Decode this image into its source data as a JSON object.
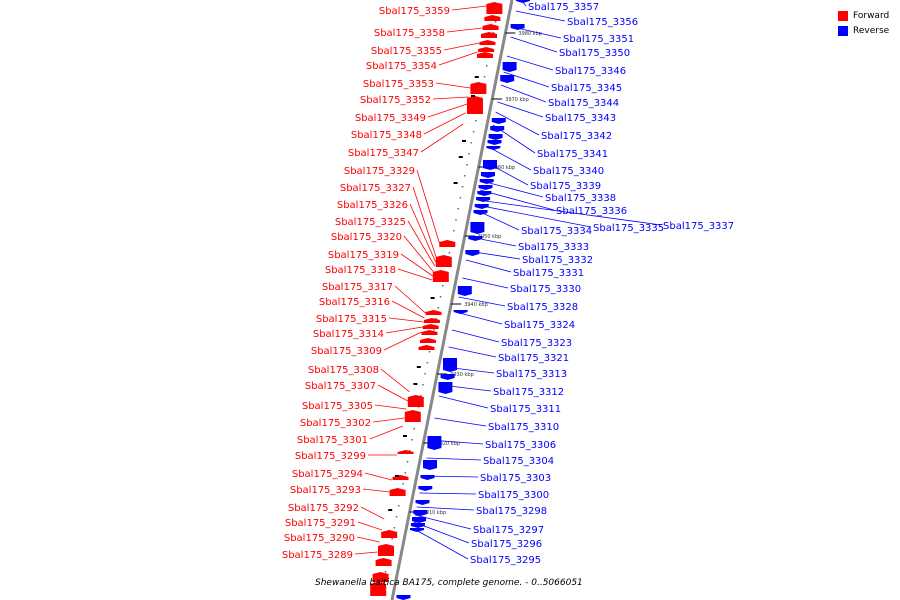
{
  "legend": {
    "forward_label": "Forward",
    "reverse_label": "Reverse",
    "forward_color": "#ff0000",
    "reverse_color": "#0000ff"
  },
  "caption": "Shewanella baltica BA175, complete genome. - 0..5066051",
  "axis_ticks": [
    "3980 kbp",
    "3970 kbp",
    "3960 kbp",
    "3950 kbp",
    "3940 kbp",
    "3930 kbp",
    "3920 kbp",
    "3910 kbp"
  ],
  "forward_labels": [
    "Sbal175_3359",
    "Sbal175_3358",
    "Sbal175_3355",
    "Sbal175_3354",
    "Sbal175_3353",
    "Sbal175_3352",
    "Sbal175_3349",
    "Sbal175_3348",
    "Sbal175_3347",
    "Sbal175_3329",
    "Sbal175_3327",
    "Sbal175_3326",
    "Sbal175_3325",
    "Sbal175_3320",
    "Sbal175_3319",
    "Sbal175_3318",
    "Sbal175_3317",
    "Sbal175_3316",
    "Sbal175_3315",
    "Sbal175_3314",
    "Sbal175_3309",
    "Sbal175_3308",
    "Sbal175_3307",
    "Sbal175_3305",
    "Sbal175_3302",
    "Sbal175_3301",
    "Sbal175_3299",
    "Sbal175_3294",
    "Sbal175_3293",
    "Sbal175_3292",
    "Sbal175_3291",
    "Sbal175_3290",
    "Sbal175_3289"
  ],
  "reverse_labels": [
    "Sbal175_3357",
    "Sbal175_3356",
    "Sbal175_3351",
    "Sbal175_3350",
    "Sbal175_3346",
    "Sbal175_3345",
    "Sbal175_3344",
    "Sbal175_3343",
    "Sbal175_3342",
    "Sbal175_3341",
    "Sbal175_3340",
    "Sbal175_3339",
    "Sbal175_3338",
    "Sbal175_3336",
    "Sbal175_3337",
    "Sbal175_3335",
    "Sbal175_3334",
    "Sbal175_3333",
    "Sbal175_3332",
    "Sbal175_3331",
    "Sbal175_3330",
    "Sbal175_3328",
    "Sbal175_3324",
    "Sbal175_3323",
    "Sbal175_3321",
    "Sbal175_3313",
    "Sbal175_3312",
    "Sbal175_3311",
    "Sbal175_3310",
    "Sbal175_3306",
    "Sbal175_3304",
    "Sbal175_3303",
    "Sbal175_3300",
    "Sbal175_3298",
    "Sbal175_3297",
    "Sbal175_3296",
    "Sbal175_3295"
  ]
}
